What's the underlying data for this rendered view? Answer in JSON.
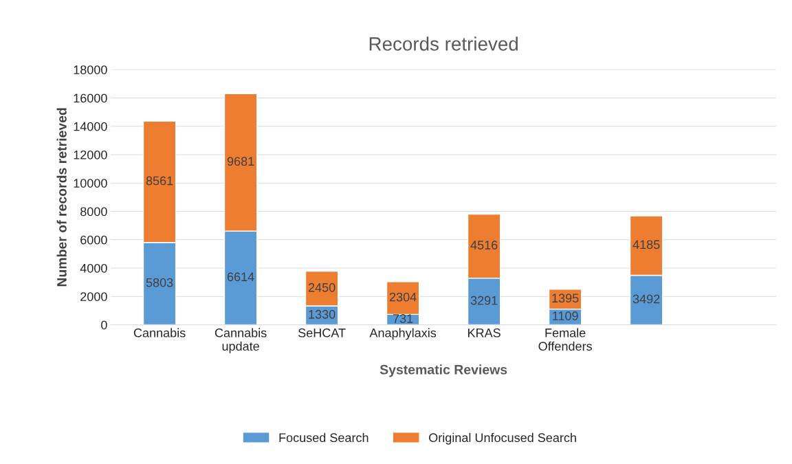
{
  "chart_data": {
    "type": "bar",
    "title": "Records retrieved",
    "xlabel": "Systematic Reviews",
    "ylabel": "Number of records retrieved",
    "categories": [
      "Cannabis",
      "Cannabis\nupdate",
      "SeHCAT",
      "Anaphylaxis",
      "KRAS",
      "Female\nOffenders",
      null,
      null
    ],
    "series": [
      {
        "name": "Focused Search",
        "color": "#5b9bd5",
        "values": [
          5803,
          6614,
          1330,
          731,
          3291,
          1109,
          3492,
          null
        ]
      },
      {
        "name": "Original Unfocused Search",
        "color": "#ed7d31",
        "values": [
          8561,
          9681,
          2450,
          2304,
          4516,
          1395,
          4185,
          null
        ]
      }
    ],
    "stacked": true,
    "ylim": [
      0,
      18000
    ],
    "yticks": [
      0,
      2000,
      4000,
      6000,
      8000,
      10000,
      12000,
      14000,
      16000,
      18000
    ],
    "grid": "y",
    "legend": "bottom",
    "data_labels": true
  }
}
